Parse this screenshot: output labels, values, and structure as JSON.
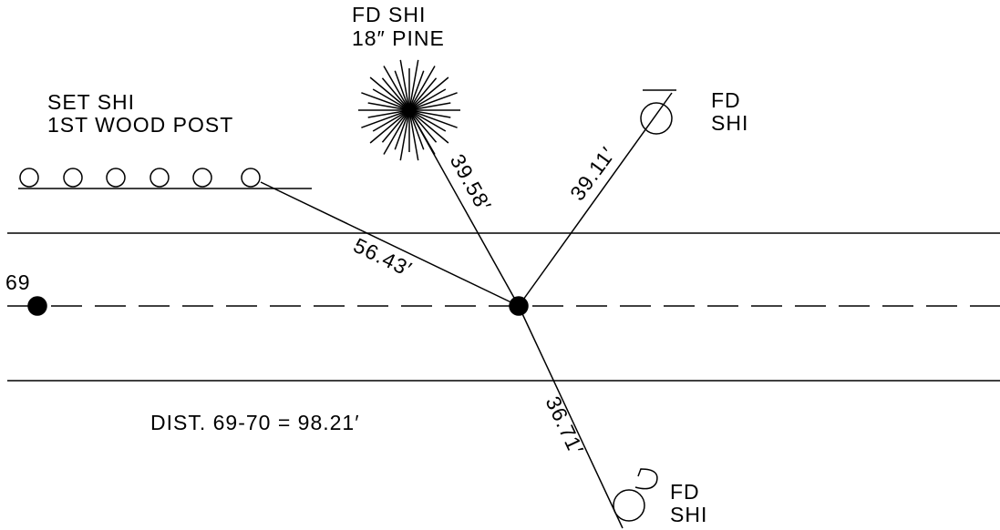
{
  "pine": {
    "line1": "FD SHI",
    "line2": "18″ PINE"
  },
  "posts": {
    "line1": "SET SHI",
    "line2": "1ST WOOD POST"
  },
  "monument_top": {
    "line1": "FD",
    "line2": "SHI"
  },
  "monument_bottom": {
    "line1": "FD",
    "line2": "SHI"
  },
  "point_label": "69",
  "distance_note": "DIST. 69-70 = 98.21′",
  "ties": {
    "posts": "56.43′",
    "pine": "39.58′",
    "monument_top": "39.11′",
    "monument_bottom": "36.71′"
  }
}
